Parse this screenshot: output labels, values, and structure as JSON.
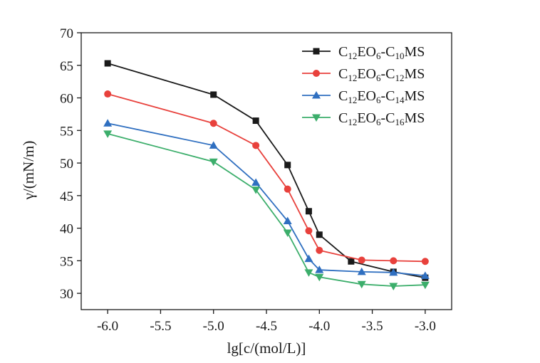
{
  "chart_data": {
    "type": "line",
    "title": "",
    "xlabel": "lg[c/(mol/L)]",
    "ylabel": "γ/(mN/m)",
    "xlim": [
      -6.25,
      -2.75
    ],
    "ylim": [
      27.5,
      70
    ],
    "xticks": [
      -6.0,
      -5.5,
      -5.0,
      -4.5,
      -4.0,
      -3.5,
      -3.0
    ],
    "xtick_labels": [
      "-6.0",
      "-5.5",
      "-5.0",
      "-4.5",
      "-4.0",
      "-3.5",
      "-3.0"
    ],
    "yticks": [
      30,
      35,
      40,
      45,
      50,
      55,
      60,
      65,
      70
    ],
    "ytick_labels": [
      "30",
      "35",
      "40",
      "45",
      "50",
      "55",
      "60",
      "65",
      "70"
    ],
    "grid": false,
    "legend_position": "top-right",
    "series": [
      {
        "name": "C12EO6-C10MS",
        "name_parts": [
          [
            "C",
            ""
          ],
          [
            "12",
            "sub"
          ],
          [
            "EO",
            ""
          ],
          [
            "6",
            "sub"
          ],
          [
            "-C",
            ""
          ],
          [
            "10",
            "sub"
          ],
          [
            "MS",
            ""
          ]
        ],
        "color": "#1a1a1a",
        "marker": "square",
        "x": [
          -6.0,
          -5.0,
          -4.6,
          -4.3,
          -4.1,
          -4.0,
          -3.7,
          -3.3,
          -3.0
        ],
        "y": [
          65.3,
          60.5,
          56.5,
          49.7,
          42.6,
          39.0,
          34.9,
          33.3,
          32.4
        ]
      },
      {
        "name": "C12EO6-C12MS",
        "name_parts": [
          [
            "C",
            ""
          ],
          [
            "12",
            "sub"
          ],
          [
            "EO",
            ""
          ],
          [
            "6",
            "sub"
          ],
          [
            "-C",
            ""
          ],
          [
            "12",
            "sub"
          ],
          [
            "MS",
            ""
          ]
        ],
        "color": "#e8413c",
        "marker": "circle",
        "x": [
          -6.0,
          -5.0,
          -4.6,
          -4.3,
          -4.1,
          -4.0,
          -3.6,
          -3.3,
          -3.0
        ],
        "y": [
          60.6,
          56.1,
          52.7,
          46.0,
          39.6,
          36.6,
          35.1,
          35.0,
          34.9
        ]
      },
      {
        "name": "C12EO6-C14MS",
        "name_parts": [
          [
            "C",
            ""
          ],
          [
            "12",
            "sub"
          ],
          [
            "EO",
            ""
          ],
          [
            "6",
            "sub"
          ],
          [
            "-C",
            ""
          ],
          [
            "14",
            "sub"
          ],
          [
            "MS",
            ""
          ]
        ],
        "color": "#2f6fc0",
        "marker": "triangle-up",
        "x": [
          -6.0,
          -5.0,
          -4.6,
          -4.3,
          -4.1,
          -4.0,
          -3.6,
          -3.3,
          -3.0
        ],
        "y": [
          56.1,
          52.7,
          47.0,
          41.1,
          35.3,
          33.6,
          33.3,
          33.2,
          32.7
        ]
      },
      {
        "name": "C12EO6-C16MS",
        "name_parts": [
          [
            "C",
            ""
          ],
          [
            "12",
            "sub"
          ],
          [
            "EO",
            ""
          ],
          [
            "6",
            "sub"
          ],
          [
            "-C",
            ""
          ],
          [
            "16",
            "sub"
          ],
          [
            "MS",
            ""
          ]
        ],
        "color": "#3cae6b",
        "marker": "triangle-down",
        "x": [
          -6.0,
          -5.0,
          -4.6,
          -4.3,
          -4.1,
          -4.0,
          -3.6,
          -3.3,
          -3.0
        ],
        "y": [
          54.5,
          50.2,
          45.9,
          39.3,
          33.2,
          32.5,
          31.4,
          31.1,
          31.3
        ]
      }
    ]
  }
}
